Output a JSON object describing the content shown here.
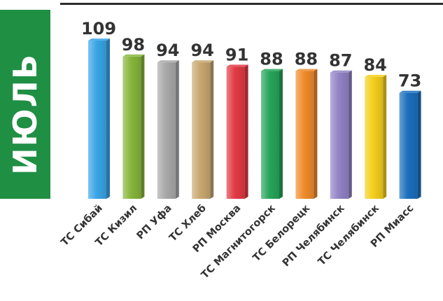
{
  "month": "ИЮЛЬ",
  "chart_data": {
    "type": "bar",
    "title": "",
    "xlabel": "",
    "ylabel": "",
    "ylim": [
      0,
      115
    ],
    "categories": [
      "ТС Сибай",
      "ТС Кизил",
      "РП Уфа",
      "ТС Хлеб",
      "РП Москва",
      "ТС Магнитогорск",
      "ТС Белорецк",
      "РП Челябинск",
      "ТС Челябинск",
      "РП Миасс"
    ],
    "values": [
      109,
      98,
      94,
      94,
      91,
      88,
      88,
      87,
      84,
      73
    ],
    "colors": [
      "#3aa5e6",
      "#86b53a",
      "#a9a9a9",
      "#c8a76f",
      "#e23a44",
      "#27a55a",
      "#ef8b2c",
      "#9283c6",
      "#f4cf1b",
      "#1b6fbd"
    ],
    "value_label_color": "#333333",
    "grid": false,
    "legend": "none"
  }
}
